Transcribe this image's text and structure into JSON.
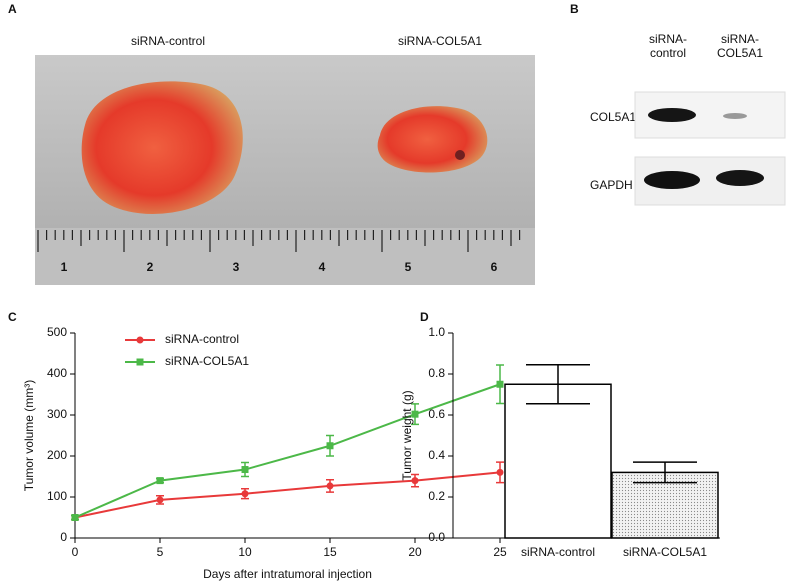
{
  "panel_labels": [
    "A",
    "B",
    "C",
    "D"
  ],
  "photo": {
    "labels": [
      "siRNA-control",
      "siRNA-COL5A1"
    ],
    "ruler": [
      "1",
      "2",
      "3",
      "4",
      "5",
      "6"
    ]
  },
  "blot": {
    "lanes": [
      [
        "siRNA-",
        "control"
      ],
      [
        "siRNA-",
        "COL5A1"
      ]
    ],
    "rows": [
      "COL5A1",
      "GAPDH"
    ]
  },
  "chart_data": [
    {
      "type": "line",
      "xlabel": "Days after intratumoral injection",
      "ylabel": "Tumor volume (mm³)",
      "x": [
        0,
        5,
        10,
        15,
        20,
        25
      ],
      "series": [
        {
          "name": "siRNA-control",
          "color": "#e8393a",
          "marker": "circle",
          "values": [
            50,
            93,
            108,
            127,
            140,
            160
          ],
          "errors": [
            5,
            10,
            12,
            15,
            15,
            25
          ]
        },
        {
          "name": "siRNA-COL5A1",
          "color": "#4cb848",
          "marker": "square",
          "values": [
            50,
            140,
            167,
            225,
            302,
            375
          ],
          "errors": [
            5,
            5,
            17,
            25,
            25,
            47
          ]
        }
      ],
      "xlim": [
        0,
        25
      ],
      "xticks": [
        0,
        5,
        10,
        15,
        20,
        25
      ],
      "ylim": [
        0,
        500
      ],
      "yticks": [
        0,
        100,
        200,
        300,
        400,
        500
      ],
      "legend": "upper left"
    },
    {
      "type": "bar",
      "ylabel": "Tumor weight (g)",
      "categories": [
        "siRNA-control",
        "siRNA-COL5A1"
      ],
      "values": [
        0.75,
        0.32
      ],
      "errors": [
        0.095,
        0.05
      ],
      "colors": [
        "#ffffff",
        "dots"
      ],
      "ylim": [
        0,
        1.0
      ],
      "yticks": [
        {
          "value": 0,
          "label": "0.0"
        },
        0.2,
        0.4,
        0.6,
        0.8,
        {
          "value": 1.0,
          "label": "1.0"
        }
      ]
    }
  ]
}
